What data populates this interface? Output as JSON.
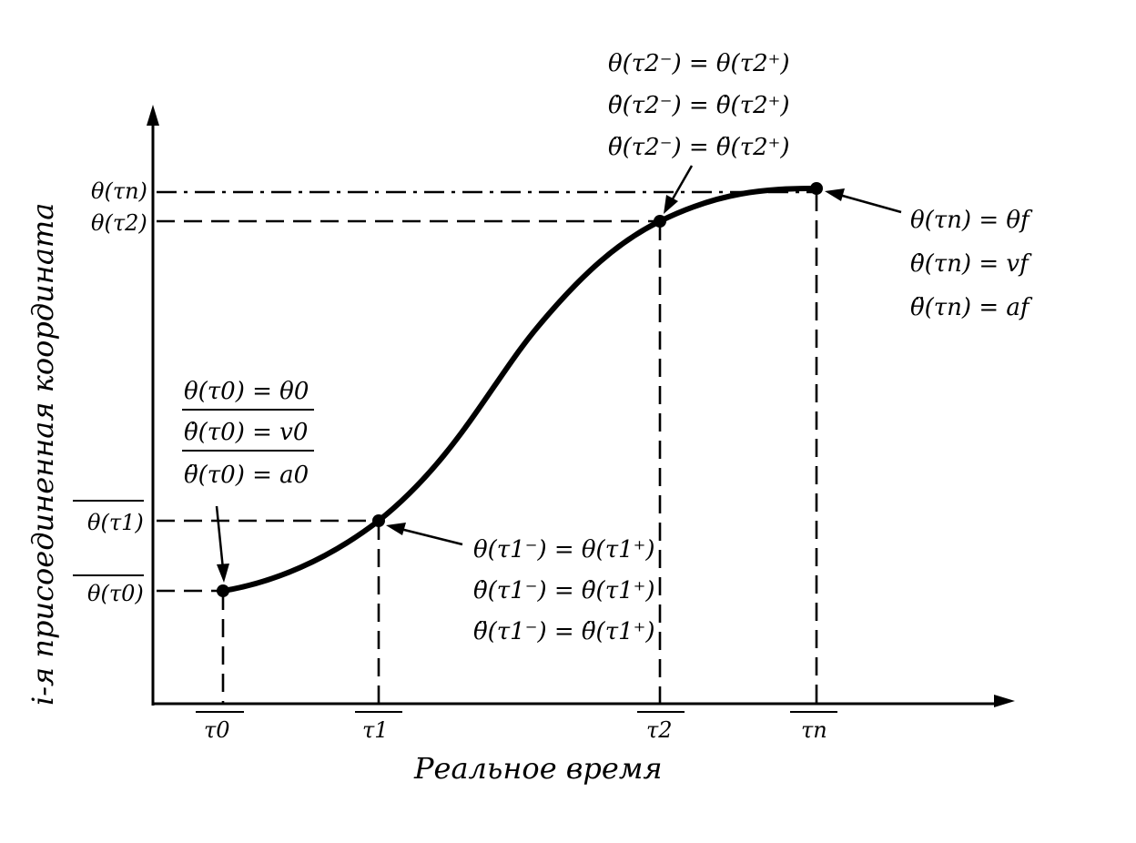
{
  "axes": {
    "x_title": "Реальное время",
    "y_title": "i-я присоединенная координата"
  },
  "x_ticks": [
    "τ0",
    "τ1",
    "τ2",
    "τn"
  ],
  "y_ticks": [
    "θ(τn)",
    "θ(τ2)",
    "θ(τ1)",
    "θ(τ0)"
  ],
  "annotations": {
    "start": [
      "θ(τ0) = θ0",
      "θ̇(τ0) = v0",
      "θ̈(τ0) = a0"
    ],
    "knot1": [
      "θ(τ1⁻) = θ(τ1⁺)",
      "θ̇(τ1⁻) = θ̇(τ1⁺)",
      "θ̈(τ1⁻) = θ̈(τ1⁺)"
    ],
    "knot2": [
      "θ(τ2⁻) = θ(τ2⁺)",
      "θ̇(τ2⁻) = θ̇(τ2⁺)",
      "θ̈(τ2⁻) = θ̈(τ2⁺)"
    ],
    "end": [
      "θ(τn) = θf",
      "θ̇(τn) = vf",
      "θ̈(τn) = af"
    ]
  }
}
